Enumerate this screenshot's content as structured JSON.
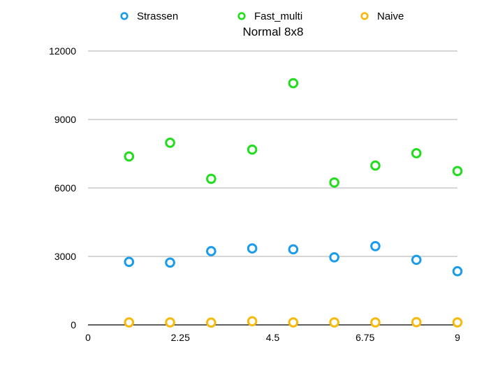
{
  "chart_data": {
    "type": "scatter",
    "title": "Normal 8x8",
    "xlabel": "",
    "ylabel": "",
    "xlim": [
      0,
      9
    ],
    "ylim": [
      0,
      12000
    ],
    "x_ticks": [
      "0",
      "2.25",
      "4.5",
      "6.75",
      "9"
    ],
    "y_ticks": [
      "0",
      "3000",
      "6000",
      "9000",
      "12000"
    ],
    "grid": true,
    "legend_position": "top",
    "series": [
      {
        "name": "Strassen",
        "color": "#1a9bec",
        "x": [
          1,
          2,
          3,
          4,
          5,
          6,
          7,
          8,
          9
        ],
        "y": [
          2760,
          2730,
          3230,
          3350,
          3310,
          2960,
          3450,
          2850,
          2350
        ]
      },
      {
        "name": "Fast_multi",
        "color": "#22dd1e",
        "x": [
          1,
          2,
          3,
          4,
          5,
          6,
          7,
          8,
          9
        ],
        "y": [
          7380,
          7980,
          6400,
          7680,
          10590,
          6240,
          6980,
          7520,
          6740
        ]
      },
      {
        "name": "Naive",
        "color": "#f6b90c",
        "x": [
          1,
          2,
          3,
          4,
          5,
          6,
          7,
          8,
          9
        ],
        "y": [
          110,
          110,
          100,
          160,
          110,
          110,
          110,
          120,
          110
        ]
      }
    ]
  }
}
